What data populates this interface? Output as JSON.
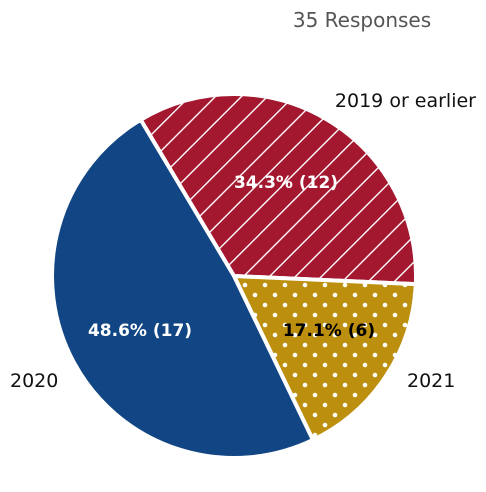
{
  "chart_data": {
    "type": "pie",
    "title": "",
    "subtitle": "35 Responses",
    "total": 35,
    "categories": [
      "2019 or earlier",
      "2021",
      "2020"
    ],
    "values": [
      12,
      6,
      17
    ],
    "value_labels": [
      "34.3% (12)",
      "17.1% (6)",
      "48.6% (17)"
    ],
    "colors": [
      "#a3172f",
      "#bd8f0e",
      "#124583"
    ],
    "patterns": [
      "diagonal-hatch",
      "dots",
      "solid"
    ],
    "label_colors": [
      "#ffffff",
      "#000000",
      "#ffffff"
    ]
  }
}
